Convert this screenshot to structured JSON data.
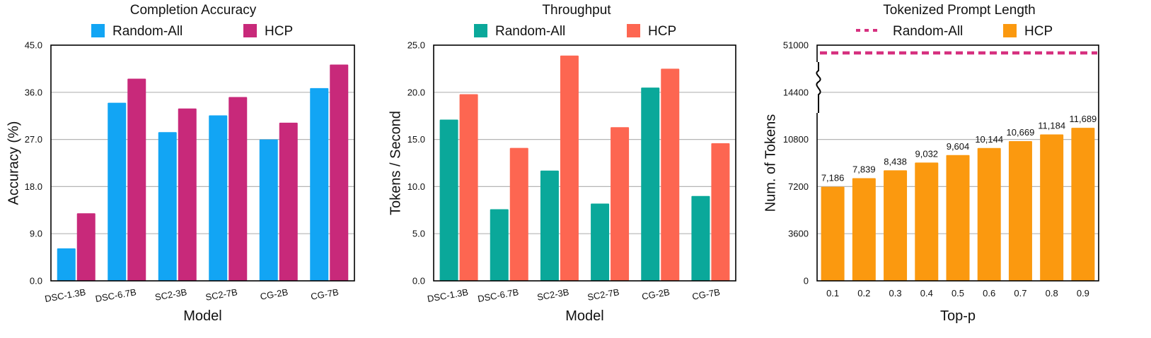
{
  "chart_data": [
    {
      "id": "accuracy",
      "type": "bar",
      "title": "Completion Accuracy",
      "xlabel": "Model",
      "ylabel": "Accuracy (%)",
      "categories": [
        "DSC-1.3B",
        "DSC-6.7B",
        "SC2-3B",
        "SC2-7B",
        "CG-2B",
        "CG-7B"
      ],
      "series": [
        {
          "name": "Random-All",
          "color": "#12a5f4",
          "values": [
            6.2,
            34.0,
            28.4,
            31.6,
            27.0,
            36.8
          ]
        },
        {
          "name": "HCP",
          "color": "#c8297a",
          "values": [
            12.9,
            38.6,
            32.9,
            35.1,
            30.2,
            41.3
          ]
        }
      ],
      "ylim": [
        0,
        45
      ],
      "yticks": [
        "0.0",
        "9.0",
        "18.0",
        "27.0",
        "36.0",
        "45.0"
      ],
      "grid": true,
      "legend_position": "top"
    },
    {
      "id": "throughput",
      "type": "bar",
      "title": "Throughput",
      "xlabel": "Model",
      "ylabel": "Tokens / Second",
      "categories": [
        "DSC-1.3B",
        "DSC-6.7B",
        "SC2-3B",
        "SC2-7B",
        "CG-2B",
        "CG-7B"
      ],
      "series": [
        {
          "name": "Random-All",
          "color": "#0aa89a",
          "values": [
            17.1,
            7.6,
            11.7,
            8.2,
            20.5,
            9.0
          ]
        },
        {
          "name": "HCP",
          "color": "#fd6651",
          "values": [
            19.8,
            14.1,
            23.9,
            16.3,
            22.5,
            14.6
          ]
        }
      ],
      "ylim": [
        0,
        25
      ],
      "yticks": [
        "0.0",
        "5.0",
        "10.0",
        "15.0",
        "20.0",
        "25.0"
      ],
      "grid": true,
      "legend_position": "top"
    },
    {
      "id": "prompt-length",
      "type": "bar",
      "title": "Tokenized Prompt Length",
      "xlabel": "Top-p",
      "ylabel": "Num. of Tokens",
      "categories": [
        "0.1",
        "0.2",
        "0.3",
        "0.4",
        "0.5",
        "0.6",
        "0.7",
        "0.8",
        "0.9"
      ],
      "series": [
        {
          "name": "Random-All",
          "color": "#d6307f",
          "style": "dashed-line",
          "value": 51000
        },
        {
          "name": "HCP",
          "color": "#fb990f",
          "values": [
            7186,
            7839,
            8438,
            9032,
            9604,
            10144,
            10669,
            11184,
            11689
          ]
        }
      ],
      "data_labels": [
        "7,186",
        "7,839",
        "8,438",
        "9,032",
        "9,604",
        "10,144",
        "10,669",
        "11,184",
        "11,689"
      ],
      "yticks": [
        "0",
        "3600",
        "7200",
        "10800",
        "14400",
        "51000"
      ],
      "ytick_values": [
        0,
        3600,
        7200,
        10800,
        14400,
        51000
      ],
      "broken_axis": true,
      "grid": true,
      "legend_position": "top"
    }
  ]
}
